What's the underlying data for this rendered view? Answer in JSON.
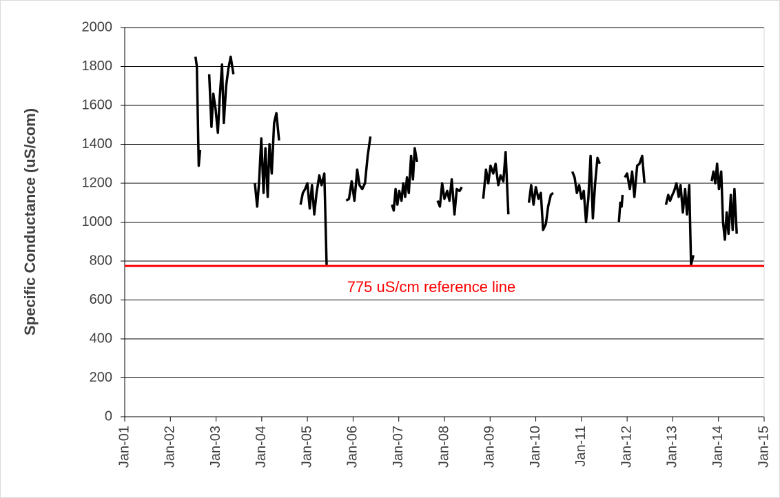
{
  "chart_data": {
    "type": "line",
    "y_label": "Specific Conductance (uS/com)",
    "xlim": [
      2001,
      2015
    ],
    "xticks": [
      {
        "value": 2001,
        "label": "Jan-01"
      },
      {
        "value": 2002,
        "label": "Jan-02"
      },
      {
        "value": 2003,
        "label": "Jan-03"
      },
      {
        "value": 2004,
        "label": "Jan-04"
      },
      {
        "value": 2005,
        "label": "Jan-05"
      },
      {
        "value": 2006,
        "label": "Jan-06"
      },
      {
        "value": 2007,
        "label": "Jan-07"
      },
      {
        "value": 2008,
        "label": "Jan-08"
      },
      {
        "value": 2009,
        "label": "Jan-09"
      },
      {
        "value": 2010,
        "label": "Jan-10"
      },
      {
        "value": 2011,
        "label": "Jan-11"
      },
      {
        "value": 2012,
        "label": "Jan-12"
      },
      {
        "value": 2013,
        "label": "Jan-13"
      },
      {
        "value": 2014,
        "label": "Jan-14"
      },
      {
        "value": 2015,
        "label": "Jan-15"
      }
    ],
    "ylim": [
      0,
      2000
    ],
    "yticks": [
      0,
      200,
      400,
      600,
      800,
      1000,
      1200,
      1400,
      1600,
      1800,
      2000
    ],
    "grid": true,
    "x": [
      2002.55,
      2002.58,
      2002.62,
      2002.65,
      null,
      2002.85,
      2002.9,
      2002.94,
      2002.99,
      2003.04,
      2003.08,
      2003.13,
      2003.17,
      2003.22,
      2003.27,
      2003.32,
      2003.38,
      null,
      2003.85,
      2003.9,
      2003.94,
      2003.99,
      2004.04,
      2004.08,
      2004.13,
      2004.17,
      2004.22,
      2004.27,
      2004.32,
      2004.38,
      null,
      2004.85,
      2004.9,
      2004.95,
      2005.0,
      2005.05,
      2005.1,
      2005.15,
      2005.2,
      2005.26,
      2005.31,
      2005.37,
      2005.42,
      null,
      2005.85,
      2005.91,
      2005.97,
      2006.03,
      2006.09,
      2006.14,
      2006.2,
      2006.26,
      2006.32,
      2006.38,
      null,
      2006.85,
      2006.89,
      2006.93,
      2006.97,
      2007.01,
      2007.06,
      2007.1,
      2007.14,
      2007.18,
      2007.22,
      2007.27,
      2007.31,
      2007.35,
      2007.4,
      null,
      2007.85,
      2007.9,
      2007.95,
      2008.0,
      2008.06,
      2008.11,
      2008.16,
      2008.22,
      2008.27,
      2008.33,
      2008.38,
      null,
      2008.85,
      2008.91,
      2008.96,
      2009.01,
      2009.07,
      2009.12,
      2009.18,
      2009.23,
      2009.29,
      2009.34,
      2009.4,
      null,
      2009.85,
      2009.9,
      2009.95,
      2010.0,
      2010.06,
      2010.11,
      2010.16,
      2010.22,
      2010.27,
      2010.33,
      2010.38,
      null,
      2010.8,
      2010.85,
      2010.9,
      2010.95,
      2011.0,
      2011.05,
      2011.1,
      2011.15,
      2011.2,
      2011.25,
      2011.3,
      2011.35,
      2011.4,
      null,
      2011.82,
      2011.85,
      2011.88,
      2011.9,
      null,
      2011.95,
      2012.0,
      2012.06,
      2012.11,
      2012.16,
      2012.22,
      2012.27,
      2012.33,
      2012.38,
      null,
      2012.85,
      2012.9,
      2012.94,
      2012.99,
      2013.03,
      2013.08,
      2013.13,
      2013.17,
      2013.22,
      2013.27,
      2013.31,
      2013.36,
      2013.4,
      2013.45,
      null,
      2013.85,
      2013.89,
      2013.93,
      2013.97,
      2014.01,
      2014.06,
      2014.1,
      2014.14,
      2014.18,
      2014.22,
      2014.27,
      2014.31,
      2014.35,
      2014.4
    ],
    "series": [
      {
        "color": "#000000",
        "values": [
          1850,
          1800,
          1290,
          1370,
          null,
          1760,
          1490,
          1660,
          1580,
          1460,
          1640,
          1810,
          1510,
          1700,
          1790,
          1850,
          1760,
          null,
          1200,
          1080,
          1200,
          1430,
          1150,
          1380,
          1130,
          1400,
          1250,
          1510,
          1560,
          1420,
          null,
          1090,
          1150,
          1170,
          1200,
          1070,
          1190,
          1040,
          1150,
          1240,
          1190,
          1250,
          780,
          null,
          1110,
          1120,
          1210,
          1110,
          1270,
          1190,
          1170,
          1200,
          1340,
          1440,
          null,
          1090,
          1060,
          1170,
          1090,
          1160,
          1110,
          1200,
          1130,
          1230,
          1150,
          1340,
          1220,
          1380,
          1310,
          null,
          1110,
          1080,
          1200,
          1120,
          1160,
          1110,
          1220,
          1040,
          1170,
          1160,
          1180,
          null,
          1120,
          1270,
          1200,
          1290,
          1250,
          1300,
          1190,
          1240,
          1210,
          1360,
          1040,
          null,
          1100,
          1190,
          1090,
          1180,
          1120,
          1150,
          960,
          990,
          1080,
          1140,
          1150,
          null,
          1260,
          1230,
          1150,
          1190,
          1120,
          1160,
          1000,
          1120,
          1340,
          1020,
          1200,
          1330,
          1300,
          null,
          1000,
          1100,
          1080,
          1140,
          null,
          1230,
          1250,
          1170,
          1260,
          1130,
          1290,
          1300,
          1340,
          1200,
          null,
          1090,
          1140,
          1110,
          1140,
          1160,
          1200,
          1130,
          1190,
          1050,
          1170,
          1040,
          1190,
          780,
          830,
          null,
          1210,
          1260,
          1200,
          1300,
          1170,
          1260,
          1000,
          910,
          1050,
          940,
          1140,
          960,
          1170,
          940
        ]
      }
    ],
    "reference_line": {
      "value": 775,
      "color": "#ff0000",
      "label": "775 uS/cm reference line"
    }
  }
}
